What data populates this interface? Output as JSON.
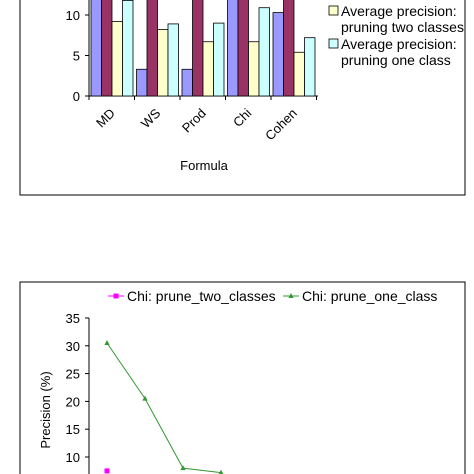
{
  "chart_data": [
    {
      "type": "bar",
      "categories": [
        "MD",
        "WS",
        "Prod",
        "Chi",
        "Cohen"
      ],
      "series": [
        {
          "name": "",
          "color": "#9999ff",
          "values": [
            13,
            3.3,
            3.3,
            13,
            10.3
          ]
        },
        {
          "name": "",
          "color": "#993366",
          "values": [
            13,
            13,
            13,
            13,
            13
          ]
        },
        {
          "name": "Average precision: pruning two classes",
          "legend_lines": [
            "Average precision:",
            "pruning two classes"
          ],
          "color": "#ffffcc",
          "values": [
            9.2,
            8.2,
            6.7,
            6.7,
            5.4
          ]
        },
        {
          "name": "Average precision: pruning one class",
          "legend_lines": [
            "Average precision:",
            "pruning one class"
          ],
          "color": "#ccffff",
          "values": [
            11.8,
            8.9,
            9.0,
            10.9,
            7.2
          ]
        }
      ],
      "xlabel": "Formula",
      "yticks": [
        "0",
        "5",
        "10"
      ],
      "ylim": [
        0,
        13
      ],
      "legend_position": "right"
    },
    {
      "type": "line",
      "series": [
        {
          "name": "Chi: prune_two_classes",
          "color": "#ff00ff",
          "marker": "square",
          "x": [
            1
          ],
          "values": [
            7.5
          ]
        },
        {
          "name": "Chi: prune_one_class",
          "color": "#339933",
          "marker": "triangle",
          "x": [
            1,
            2,
            3,
            4
          ],
          "values": [
            30.5,
            20.5,
            8.0,
            7.2
          ]
        }
      ],
      "ylabel": "Precision (%)",
      "yticks": [
        "35",
        "30",
        "25",
        "20",
        "15",
        "10"
      ],
      "ylim": [
        7,
        35
      ],
      "legend_position": "top"
    }
  ]
}
